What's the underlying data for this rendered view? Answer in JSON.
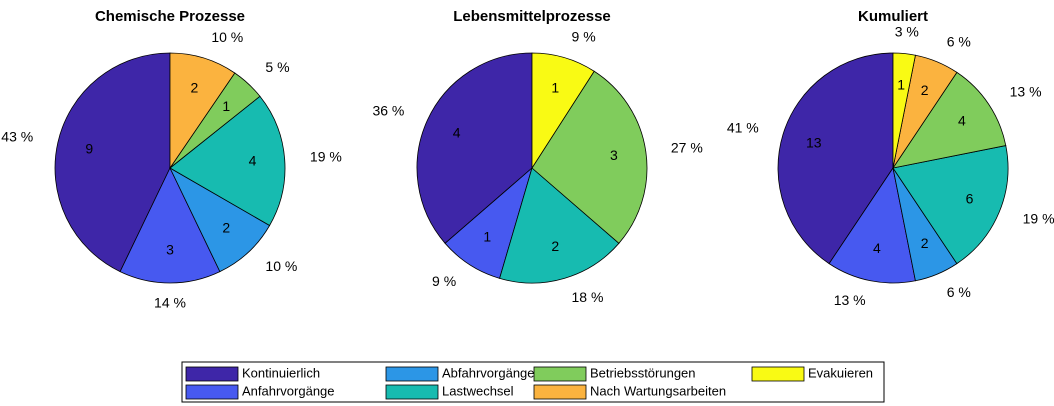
{
  "legend": {
    "categories": [
      "Kontinuierlich",
      "Anfahrvorgänge",
      "Abfahrvorgänge",
      "Lastwechsel",
      "Betriebsstörungen",
      "Nach Wartungsarbeiten",
      "Evakuieren"
    ],
    "colors": [
      "#3e26a8",
      "#4759f0",
      "#2c96e6",
      "#17bbb0",
      "#80cc5c",
      "#fbb33f",
      "#f9fa14"
    ]
  },
  "chart_data": [
    {
      "type": "pie",
      "title": "Chemische Prozesse",
      "categories": [
        "Kontinuierlich",
        "Anfahrvorgänge",
        "Abfahrvorgänge",
        "Lastwechsel",
        "Betriebsstörungen",
        "Nach Wartungsarbeiten"
      ],
      "values": [
        9,
        3,
        2,
        4,
        1,
        2
      ],
      "percents": [
        {
          "value": 43,
          "label": "43 %"
        },
        {
          "value": 14,
          "label": "14 %"
        },
        {
          "value": 10,
          "label": "10 %"
        },
        {
          "value": 19,
          "label": "19 %"
        },
        {
          "value": 5,
          "label": "5 %"
        },
        {
          "value": 10,
          "label": "10 %"
        }
      ]
    },
    {
      "type": "pie",
      "title": "Lebensmittelprozesse",
      "categories": [
        "Kontinuierlich",
        "Anfahrvorgänge",
        "Lastwechsel",
        "Betriebsstörungen",
        "Evakuieren"
      ],
      "values": [
        4,
        1,
        2,
        3,
        1
      ],
      "percents": [
        {
          "value": 36,
          "label": "36 %"
        },
        {
          "value": 9,
          "label": "9 %"
        },
        {
          "value": 18,
          "label": "18 %"
        },
        {
          "value": 27,
          "label": "27 %"
        },
        {
          "value": 9,
          "label": "9 %"
        }
      ]
    },
    {
      "type": "pie",
      "title": "Kumuliert",
      "categories": [
        "Kontinuierlich",
        "Anfahrvorgänge",
        "Abfahrvorgänge",
        "Lastwechsel",
        "Betriebsstörungen",
        "Nach Wartungsarbeiten",
        "Evakuieren"
      ],
      "values": [
        13,
        4,
        2,
        6,
        4,
        2,
        1
      ],
      "percents": [
        {
          "value": 41,
          "label": "41 %"
        },
        {
          "value": 13,
          "label": "13 %"
        },
        {
          "value": 6,
          "label": "6 %"
        },
        {
          "value": 19,
          "label": "19 %"
        },
        {
          "value": 13,
          "label": "13 %"
        },
        {
          "value": 6,
          "label": "6 %"
        },
        {
          "value": 3,
          "label": "3 %"
        }
      ]
    }
  ]
}
